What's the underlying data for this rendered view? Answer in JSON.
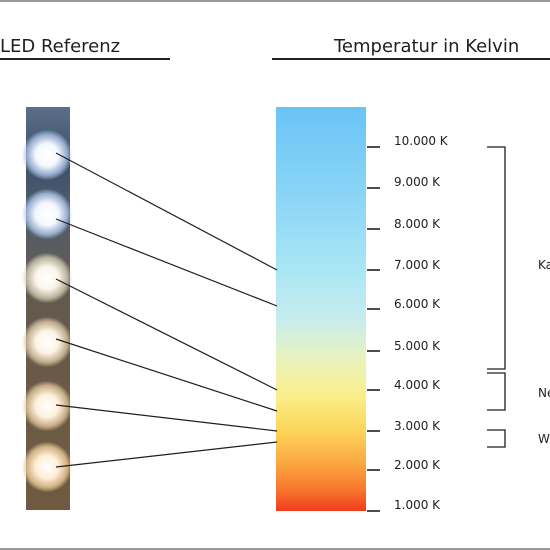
{
  "headers": {
    "left": "LED Referenz",
    "right": "Temperatur in Kelvin"
  },
  "scale": {
    "ticks": [
      "10.000 K",
      "9.000 K",
      "8.000 K",
      "7.000 K",
      "6.000 K",
      "5.000 K",
      "4.000 K",
      "3.000 K",
      "2.000 K",
      "1.000 K"
    ]
  },
  "categories": {
    "cold": "Ka",
    "neutral": "Ne",
    "warm": "W"
  },
  "colors": {
    "line": "#1f1f1f",
    "bar_top": "#6ac4f6",
    "bar_bottom": "#f03b1e"
  }
}
